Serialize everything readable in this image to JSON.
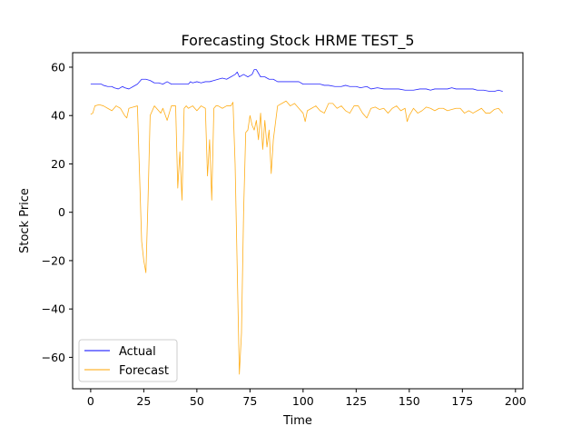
{
  "chart_data": {
    "type": "line",
    "title": "Forecasting Stock HRME TEST_5",
    "xlabel": "Time",
    "ylabel": "Stock Price",
    "xlim": [
      -8.5,
      203.5
    ],
    "ylim": [
      -73,
      66
    ],
    "xticks": [
      0,
      25,
      50,
      75,
      100,
      125,
      150,
      175,
      200
    ],
    "yticks": [
      -60,
      -40,
      -20,
      0,
      20,
      40,
      60
    ],
    "xtick_labels": [
      "0",
      "25",
      "50",
      "75",
      "100",
      "125",
      "150",
      "175",
      "200"
    ],
    "ytick_labels": [
      "−60",
      "−40",
      "−20",
      "0",
      "20",
      "40",
      "60"
    ],
    "grid": false,
    "legend_position": "lower-left",
    "series": [
      {
        "name": "Actual",
        "color": "#0000ff",
        "x": [
          0,
          5,
          6,
          8,
          10,
          11,
          13,
          15,
          16,
          18,
          20,
          22,
          24,
          26,
          28,
          30,
          32,
          34,
          36,
          38,
          40,
          42,
          44,
          46,
          47,
          48,
          50,
          52,
          54,
          56,
          58,
          60,
          62,
          64,
          66,
          68,
          69,
          70,
          72,
          74,
          76,
          77,
          78,
          80,
          82,
          84,
          86,
          88,
          90,
          92,
          94,
          96,
          98,
          100,
          105,
          108,
          110,
          112,
          115,
          118,
          120,
          122,
          125,
          127,
          130,
          132,
          135,
          138,
          140,
          142,
          145,
          148,
          150,
          152,
          155,
          158,
          160,
          162,
          165,
          168,
          170,
          172,
          175,
          178,
          180,
          182,
          185,
          188,
          190,
          192,
          194
        ],
        "values": [
          53,
          53,
          52.5,
          52,
          52,
          51.5,
          51,
          52,
          51.5,
          51,
          52,
          53,
          55,
          55,
          54.5,
          53.5,
          53.5,
          53,
          54,
          53,
          53,
          53,
          53,
          53,
          54,
          53.5,
          54,
          53.5,
          54,
          54,
          54.5,
          55,
          55.5,
          55,
          56,
          57,
          58,
          56,
          57,
          56,
          57,
          59,
          59,
          56,
          56,
          55,
          55,
          54,
          54,
          54,
          54,
          54,
          54,
          53,
          53,
          53,
          52.5,
          52.5,
          52,
          52,
          52.5,
          52,
          52,
          51.5,
          52,
          51,
          51.5,
          51,
          51,
          51,
          51,
          50.5,
          50.5,
          50.5,
          51,
          51,
          50.5,
          51,
          51,
          51,
          51.5,
          51,
          51,
          51,
          51,
          50.5,
          50.5,
          50,
          50,
          50.5,
          50
        ]
      },
      {
        "name": "Forecast",
        "color": "#ffa500",
        "x": [
          0,
          1,
          2,
          4,
          6,
          8,
          10,
          12,
          14,
          16,
          17,
          18,
          20,
          22,
          24,
          25,
          26,
          27,
          28,
          30,
          32,
          33,
          34,
          36,
          38,
          40,
          41,
          42,
          43,
          44,
          45,
          46,
          48,
          50,
          52,
          54,
          55,
          56,
          57,
          58,
          59,
          60,
          62,
          64,
          66,
          67,
          68,
          70,
          71,
          72,
          73,
          74,
          75,
          76,
          77,
          78,
          79,
          80,
          81,
          82,
          83,
          84,
          85,
          86,
          88,
          90,
          92,
          94,
          96,
          98,
          100,
          101,
          102,
          104,
          106,
          108,
          110,
          112,
          114,
          116,
          118,
          120,
          122,
          124,
          126,
          128,
          130,
          132,
          134,
          136,
          138,
          140,
          142,
          144,
          146,
          148,
          149,
          150,
          152,
          154,
          156,
          158,
          160,
          162,
          164,
          166,
          168,
          170,
          172,
          174,
          176,
          178,
          180,
          182,
          184,
          186,
          188,
          190,
          192,
          194
        ],
        "values": [
          40.5,
          41,
          44,
          44.5,
          44,
          43,
          42,
          44,
          43,
          40,
          39,
          43,
          43.5,
          44,
          -12,
          -20,
          -25,
          5,
          40,
          44,
          42,
          41,
          43,
          38,
          44,
          44,
          10,
          25,
          5,
          43,
          44,
          43,
          44,
          42,
          44,
          43,
          15,
          30,
          5,
          43,
          44,
          44,
          43,
          44,
          44,
          45.5,
          20,
          -67,
          -50,
          0,
          33,
          34,
          40,
          36,
          34,
          38,
          30,
          41,
          26,
          38,
          27,
          34,
          16,
          30,
          44,
          45,
          46,
          44,
          45,
          43,
          41,
          37.5,
          42,
          43,
          44,
          42,
          41,
          45,
          45,
          43,
          44,
          42,
          41,
          44,
          44,
          41,
          39,
          43,
          43.5,
          42.5,
          43,
          41,
          43,
          44,
          42,
          43,
          37.5,
          40,
          43,
          41,
          42,
          43.5,
          43,
          42,
          43,
          43,
          42,
          42.5,
          43,
          43,
          41,
          42,
          41,
          42,
          43,
          41,
          41,
          42.5,
          43,
          41
        ]
      }
    ]
  }
}
